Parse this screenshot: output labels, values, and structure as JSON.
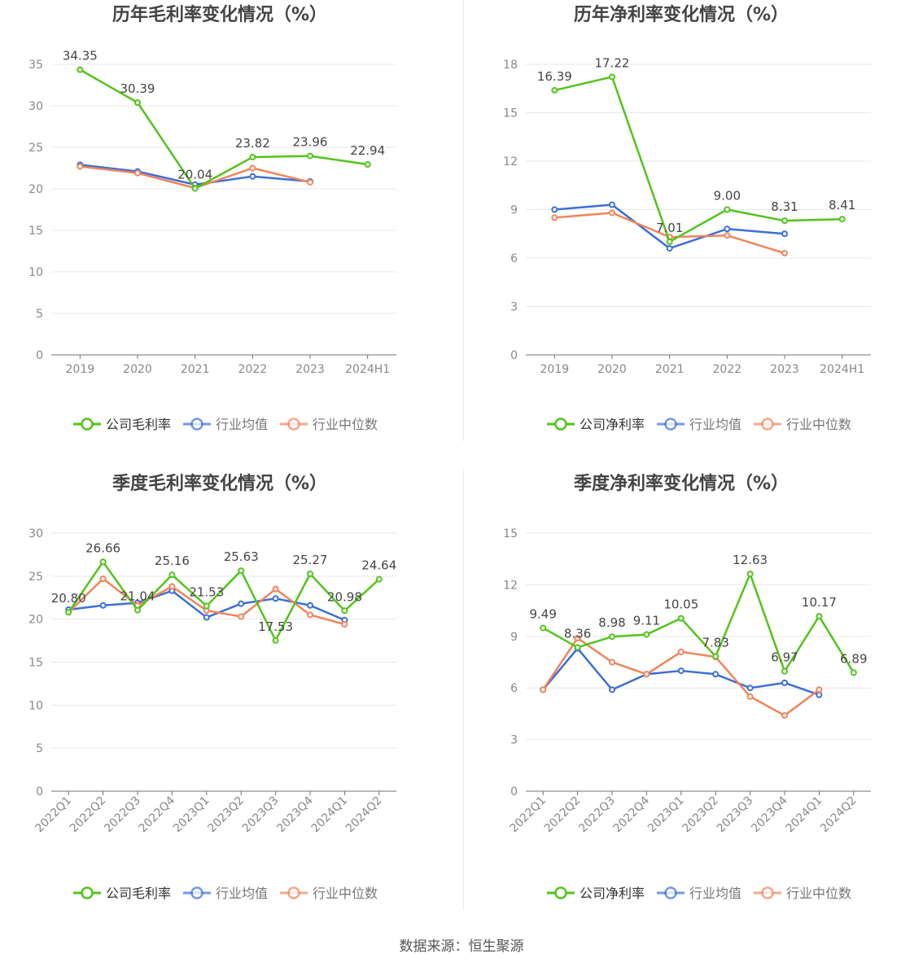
{
  "footer": "数据来源：恒生聚源",
  "chart_data": [
    {
      "type": "line",
      "title": "历年毛利率变化情况（%）",
      "categories": [
        "2019",
        "2020",
        "2021",
        "2022",
        "2023",
        "2024H1"
      ],
      "ylim": [
        0,
        35
      ],
      "yticks": [
        0,
        5,
        10,
        15,
        20,
        25,
        30,
        35
      ],
      "grid": true,
      "legend_position": "bottom",
      "series": [
        {
          "name": "公司毛利率",
          "color": "#52c41a",
          "values": [
            34.35,
            30.39,
            20.04,
            23.82,
            23.96,
            22.94
          ],
          "labels": [
            "34.35",
            "30.39",
            "20.04",
            "23.82",
            "23.96",
            "22.94"
          ]
        },
        {
          "name": "行业均值",
          "color": "#3b6fd8",
          "values": [
            22.9,
            22.1,
            20.5,
            21.5,
            20.9,
            null
          ]
        },
        {
          "name": "行业中位数",
          "color": "#f0845a",
          "values": [
            22.7,
            21.9,
            20.1,
            22.5,
            20.8,
            null
          ]
        }
      ]
    },
    {
      "type": "line",
      "title": "历年净利率变化情况（%）",
      "categories": [
        "2019",
        "2020",
        "2021",
        "2022",
        "2023",
        "2024H1"
      ],
      "ylim": [
        0,
        18
      ],
      "yticks": [
        0,
        3,
        6,
        9,
        12,
        15,
        18
      ],
      "grid": true,
      "legend_position": "bottom",
      "series": [
        {
          "name": "公司净利率",
          "color": "#52c41a",
          "values": [
            16.39,
            17.22,
            7.01,
            9.0,
            8.31,
            8.41
          ],
          "labels": [
            "16.39",
            "17.22",
            "7.01",
            "9.00",
            "8.31",
            "8.41"
          ]
        },
        {
          "name": "行业均值",
          "color": "#3b6fd8",
          "values": [
            9.0,
            9.3,
            6.6,
            7.8,
            7.5,
            null
          ]
        },
        {
          "name": "行业中位数",
          "color": "#f0845a",
          "values": [
            8.5,
            8.8,
            7.3,
            7.4,
            6.3,
            null
          ]
        }
      ]
    },
    {
      "type": "line",
      "title": "季度毛利率变化情况（%）",
      "categories": [
        "2022Q1",
        "2022Q2",
        "2022Q3",
        "2022Q4",
        "2023Q1",
        "2023Q2",
        "2023Q3",
        "2023Q4",
        "2024Q1",
        "2024Q2"
      ],
      "ylim": [
        0,
        30
      ],
      "yticks": [
        0,
        5,
        10,
        15,
        20,
        25,
        30
      ],
      "grid": true,
      "legend_position": "bottom",
      "series": [
        {
          "name": "公司毛利率",
          "color": "#52c41a",
          "values": [
            20.8,
            26.66,
            21.04,
            25.16,
            21.53,
            25.63,
            17.53,
            25.27,
            20.98,
            24.64
          ],
          "labels": [
            "20.80",
            "26.66",
            "21.04",
            "25.16",
            "21.53",
            "25.63",
            "17.53",
            "25.27",
            "20.98",
            "24.64"
          ]
        },
        {
          "name": "行业均值",
          "color": "#3b6fd8",
          "values": [
            21.1,
            21.6,
            21.9,
            23.3,
            20.2,
            21.8,
            22.4,
            21.6,
            19.9,
            null
          ]
        },
        {
          "name": "行业中位数",
          "color": "#f0845a",
          "values": [
            20.8,
            24.7,
            21.6,
            23.8,
            21.0,
            20.3,
            23.5,
            20.5,
            19.4,
            null
          ]
        }
      ]
    },
    {
      "type": "line",
      "title": "季度净利率变化情况（%）",
      "categories": [
        "2022Q1",
        "2022Q2",
        "2022Q3",
        "2022Q4",
        "2023Q1",
        "2023Q2",
        "2023Q3",
        "2023Q4",
        "2024Q1",
        "2024Q2"
      ],
      "ylim": [
        0,
        15
      ],
      "yticks": [
        0,
        3,
        6,
        9,
        12,
        15
      ],
      "grid": true,
      "legend_position": "bottom",
      "series": [
        {
          "name": "公司净利率",
          "color": "#52c41a",
          "values": [
            9.49,
            8.36,
            8.98,
            9.11,
            10.05,
            7.83,
            12.63,
            6.97,
            10.17,
            6.89
          ],
          "labels": [
            "9.49",
            "8.36",
            "8.98",
            "9.11",
            "10.05",
            "7.83",
            "12.63",
            "6.97",
            "10.17",
            "6.89"
          ]
        },
        {
          "name": "行业均值",
          "color": "#3b6fd8",
          "values": [
            5.9,
            8.3,
            5.9,
            6.8,
            7.0,
            6.8,
            6.0,
            6.3,
            5.6,
            null
          ]
        },
        {
          "name": "行业中位数",
          "color": "#f0845a",
          "values": [
            5.9,
            8.9,
            7.5,
            6.8,
            8.1,
            7.8,
            5.5,
            4.4,
            5.9,
            null
          ]
        }
      ]
    }
  ]
}
